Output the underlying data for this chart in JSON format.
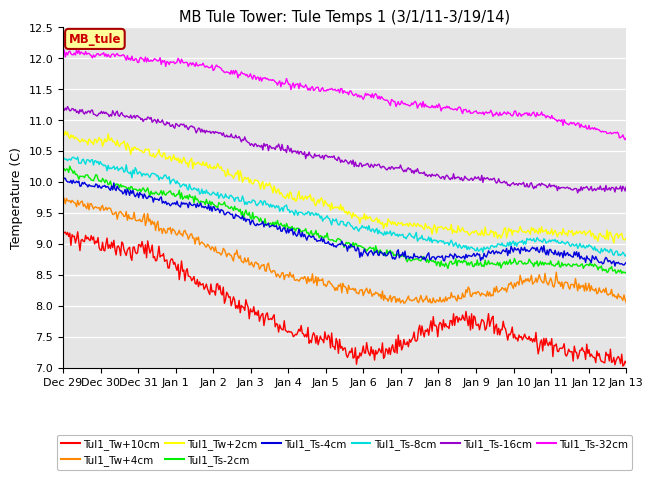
{
  "title": "MB Tule Tower: Tule Temps 1 (3/1/11-3/19/14)",
  "ylabel": "Temperature (C)",
  "ylim": [
    7.0,
    12.5
  ],
  "yticks": [
    7.0,
    7.5,
    8.0,
    8.5,
    9.0,
    9.5,
    10.0,
    10.5,
    11.0,
    11.5,
    12.0,
    12.5
  ],
  "bg_color": "#e5e5e5",
  "legend_box_color": "#ffff99",
  "legend_box_edge": "#aa0000",
  "legend_label": "MB_tule",
  "series": [
    {
      "label": "Tul1_Tw+10cm",
      "color": "#ff0000"
    },
    {
      "label": "Tul1_Tw+4cm",
      "color": "#ff8800"
    },
    {
      "label": "Tul1_Tw+2cm",
      "color": "#ffff00"
    },
    {
      "label": "Tul1_Ts-2cm",
      "color": "#00ee00"
    },
    {
      "label": "Tul1_Ts-4cm",
      "color": "#0000dd"
    },
    {
      "label": "Tul1_Ts-8cm",
      "color": "#00dddd"
    },
    {
      "label": "Tul1_Ts-16cm",
      "color": "#9900cc"
    },
    {
      "label": "Tul1_Ts-32cm",
      "color": "#ff00ff"
    }
  ],
  "n_points": 500,
  "x_start": 0,
  "x_end": 15,
  "xtick_labels": [
    "Dec 29",
    "Dec 30",
    "Dec 31",
    "Jan 1",
    "Jan 2",
    "Jan 3",
    "Jan 4",
    "Jan 5",
    "Jan 6",
    "Jan 7",
    "Jan 8",
    "Jan 9",
    "Jan 10",
    "Jan 11",
    "Jan 12",
    "Jan 13"
  ],
  "xtick_positions": [
    0,
    1,
    2,
    3,
    4,
    5,
    6,
    7,
    8,
    9,
    10,
    11,
    12,
    13,
    14,
    15
  ]
}
